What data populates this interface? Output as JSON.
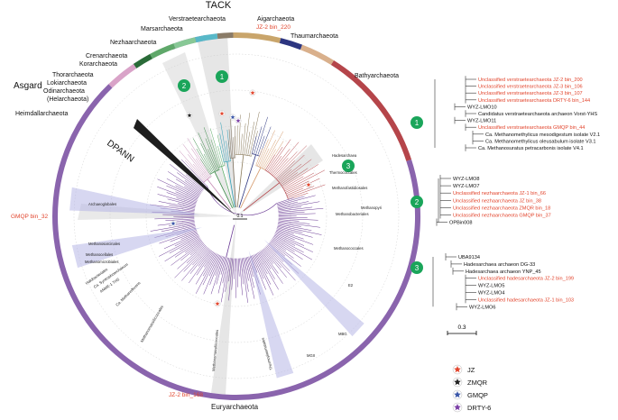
{
  "phyla": {
    "tack": "TACK",
    "asgard": "Asgard",
    "dpann": "DPANN",
    "euryarchaeota": "Euryarchaeota",
    "verstraete": "Verstraetearchaeota",
    "aigarch": "Aigarchaeota",
    "marsarch": "Marsarchaeota",
    "thaum": "Thaumarchaeota",
    "nezha": "Nezhaarchaeota",
    "bathy": "Bathyarchaeota",
    "cren": "Crenarchaeota",
    "kor": "Korarchaeota",
    "thor": "Thorarchaeota",
    "loki": "Lokiarchaeota",
    "odin": "Odinarchaeota",
    "hela": "(Helarchaeota)",
    "heim": "Heimdallarchaeota"
  },
  "bins": {
    "jz_220": "JZ-2 bin_220",
    "gmqp_32": "GMQP bin_32",
    "jz_168": "JZ-2 bin_168"
  },
  "orders": {
    "hadesarch": "Hadesarchaea",
    "thermococ": "Thermococcales",
    "methanofast": "Methanofastidiosales",
    "methanopyri": "Methanopyri",
    "methanobact": "Methanobacteriales",
    "methanococ": "Methanococcales",
    "archaeoglob": "Archaeoglobales",
    "methanosarc": "Methanosarcinales",
    "methanocella": "Methanocellales",
    "methanomicro": "Methanomicrobiales",
    "halobact": "Halobacteriales",
    "syntro": "Ca. Syntrophoarchaeum",
    "anme": "ANME-1 THS",
    "methanoflor": "Ca. Methanoflorens",
    "methanomassil": "Methanomassiliicoccales",
    "methanomassil2": "Methanomassiliicoccales",
    "thermoplas": "Thermoplasmatales",
    "e2": "E2",
    "mbg": "MBG",
    "mgii": "MGII"
  },
  "markers": {
    "one": "1",
    "two": "2",
    "three": "3"
  },
  "scale": {
    "tree": "0.1",
    "subtree": "0.3"
  },
  "clade1": {
    "leaves": [
      "Unclassified verstraetearchaeota JZ-2 bin_200",
      "Unclassified verstraetearchaeota JZ-3 bin_106",
      "Unclassified verstraetearchaeota JZ-3 bin_107",
      "Unclassified verstraetearchaeota DRTY-6 bin_144",
      "WYZ-LMO10",
      "Candidatus verstraetearchaeota archaeon Vorst-YHS",
      "WYZ-LMO11",
      "Unclassified verstraetearchaeota GMQP bin_44",
      "Ca. Methanomethylicus mesodigestum isolate V2.1",
      "Ca. Methanomethylicus oleusabulum isolate V3.1",
      "Ca. Methanosuratus petracarbonis isolate V4.1"
    ]
  },
  "clade2": {
    "leaves": [
      "WYZ-LMO8",
      "WYZ-LMO7",
      "Unclassified nezhaarchaeota JZ-1 bin_66",
      "Unclassified nezhaarchaeota JZ bin_38",
      "Unclassified nezhaarchaeota ZMQR bin_18",
      "Unclassified nezhaarchaeota GMQP bin_37",
      "OPBin008"
    ]
  },
  "clade3": {
    "leaves": [
      "UBA9134",
      "Hadesarchaea archaeon DG-33",
      "Hadesarchaea archaeon YNP_45",
      "Unclassified hadesarchaeota JZ-2 bin_199",
      "WYZ-LMO5",
      "WYZ-LMO4",
      "Unclassified hadesarchaeota JZ-1 bin_103",
      "WYZ-LMO6"
    ]
  },
  "legend": [
    {
      "label": "JZ",
      "color": "#e2452d"
    },
    {
      "label": "ZMQR",
      "color": "#222222"
    },
    {
      "label": "GMQP",
      "color": "#3a56a8"
    },
    {
      "label": "DRTY-6",
      "color": "#7b3fa6"
    }
  ],
  "colors": {
    "red": "#e2452d",
    "green": "#1aa55a",
    "purple": "#8a64ad",
    "tack_gold": "#c9a56b",
    "bathy": "#b5454a"
  }
}
